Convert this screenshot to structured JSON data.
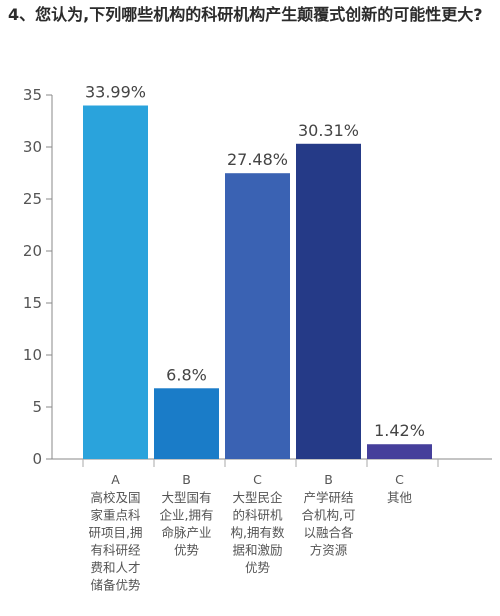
{
  "title": "4、您认为,下列哪些机构的科研机构产生颠覆式创新的可能性更大?",
  "chart_data": {
    "type": "bar",
    "ylim": [
      0,
      35
    ],
    "yticks": [
      0,
      5,
      10,
      15,
      20,
      25,
      30,
      35
    ],
    "grid": false,
    "value_labels": [
      "33.99%",
      "6.8%",
      "27.48%",
      "30.31%",
      "1.42%"
    ],
    "values": [
      33.99,
      6.8,
      27.48,
      30.31,
      1.42
    ],
    "categories": [
      {
        "letter": "A",
        "lines": [
          "高校及国",
          "家重点科",
          "研项目,拥",
          "有科研经",
          "费和人才",
          "储备优势"
        ]
      },
      {
        "letter": "B",
        "lines": [
          "大型国有",
          "企业,拥有",
          "命脉产业",
          "优势"
        ]
      },
      {
        "letter": "C",
        "lines": [
          "大型民企",
          "的科研机",
          "构,拥有数",
          "据和激励",
          "优势"
        ]
      },
      {
        "letter": "B",
        "lines": [
          "产学研结",
          "合机构,可",
          "以融合各",
          "方资源"
        ]
      },
      {
        "letter": "C",
        "lines": [
          "其他"
        ]
      }
    ],
    "colors": [
      "#2aa3dc",
      "#1a7cc8",
      "#3a62b3",
      "#253a87",
      "#453f9b"
    ]
  }
}
